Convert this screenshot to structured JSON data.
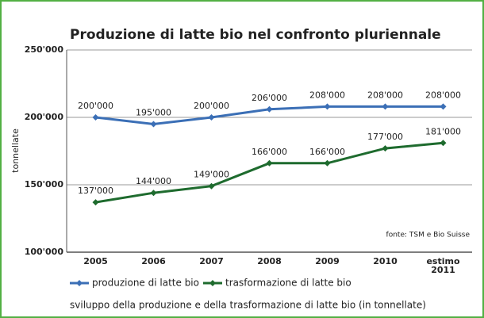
{
  "chart_data": {
    "type": "line",
    "title": "Produzione di latte bio nel confronto pluriennale",
    "y_label": "tonnellate",
    "source": "fonte: TSM e Bio Suisse",
    "caption": "sviluppo della produzione e della trasformazione di latte bio (in tonnellate)",
    "categories": [
      "2005",
      "2006",
      "2007",
      "2008",
      "2009",
      "2010",
      "estimo 2011"
    ],
    "series": [
      {
        "name": "produzione di latte bio",
        "color": "#3b6fb6",
        "values": [
          200000,
          195000,
          200000,
          206000,
          208000,
          208000,
          208000
        ],
        "value_labels": [
          "200'000",
          "195'000",
          "200'000",
          "206'000",
          "208'000",
          "208'000",
          "208'000"
        ]
      },
      {
        "name": "trasformazione di latte bio",
        "color": "#1e6b2e",
        "values": [
          137000,
          144000,
          149000,
          166000,
          166000,
          177000,
          181000
        ],
        "value_labels": [
          "137'000",
          "144'000",
          "149'000",
          "166'000",
          "166'000",
          "177'000",
          "181'000"
        ]
      }
    ],
    "ylim": [
      100000,
      250000
    ],
    "yticks": [
      {
        "value": 100000,
        "label": "100'000"
      },
      {
        "value": 150000,
        "label": "150'000"
      },
      {
        "value": 200000,
        "label": "200'000"
      },
      {
        "value": 250000,
        "label": "250'000"
      }
    ],
    "grid": true
  }
}
